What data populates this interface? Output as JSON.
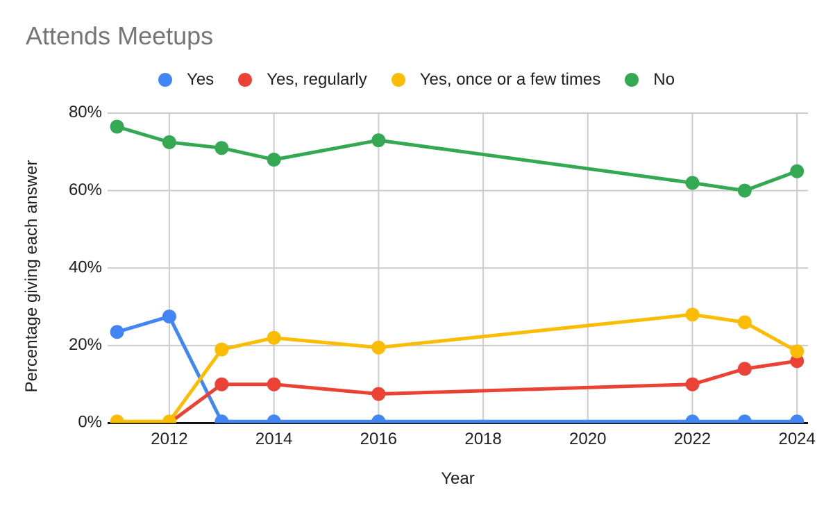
{
  "chart_data": {
    "type": "line",
    "title": "Attends Meetups",
    "xlabel": "Year",
    "ylabel": "Percentage giving each answer",
    "ylim": [
      0,
      80
    ],
    "xlim": [
      2010.82,
      2024.21
    ],
    "grid": true,
    "legend_position": "top-center",
    "y_ticks": [
      {
        "label": "0%",
        "value": 0
      },
      {
        "label": "20%",
        "value": 20
      },
      {
        "label": "40%",
        "value": 40
      },
      {
        "label": "60%",
        "value": 60
      },
      {
        "label": "80%",
        "value": 80
      }
    ],
    "x_ticks": [
      {
        "label": "2012",
        "value": 2012
      },
      {
        "label": "2014",
        "value": 2014
      },
      {
        "label": "2016",
        "value": 2016
      },
      {
        "label": "2018",
        "value": 2018
      },
      {
        "label": "2020",
        "value": 2020
      },
      {
        "label": "2022",
        "value": 2022
      },
      {
        "label": "2024",
        "value": 2024
      }
    ],
    "series": [
      {
        "name": "Yes",
        "color": "#4285F4",
        "points": [
          [
            2011,
            23.5
          ],
          [
            2012,
            27.5
          ],
          [
            2013,
            0.4
          ],
          [
            2014,
            0.4
          ],
          [
            2016,
            0.4
          ],
          [
            2022,
            0.4
          ],
          [
            2023,
            0.4
          ],
          [
            2024,
            0.4
          ]
        ]
      },
      {
        "name": "Yes, regularly",
        "color": "#EA4335",
        "points": [
          [
            2012,
            0
          ],
          [
            2013,
            10
          ],
          [
            2014,
            10
          ],
          [
            2016,
            7.5
          ],
          [
            2022,
            10
          ],
          [
            2023,
            14
          ],
          [
            2024,
            16
          ]
        ]
      },
      {
        "name": "Yes, once or a few times",
        "color": "#FBBC04",
        "points": [
          [
            2011,
            0.4
          ],
          [
            2012,
            0.4
          ],
          [
            2013,
            19
          ],
          [
            2014,
            22
          ],
          [
            2016,
            19.5
          ],
          [
            2022,
            28
          ],
          [
            2023,
            26
          ],
          [
            2024,
            18.5
          ]
        ]
      },
      {
        "name": "No",
        "color": "#34A853",
        "points": [
          [
            2011,
            76.5
          ],
          [
            2012,
            72.5
          ],
          [
            2013,
            71
          ],
          [
            2014,
            68
          ],
          [
            2016,
            73
          ],
          [
            2022,
            62
          ],
          [
            2023,
            60
          ],
          [
            2024,
            65
          ]
        ]
      }
    ]
  }
}
